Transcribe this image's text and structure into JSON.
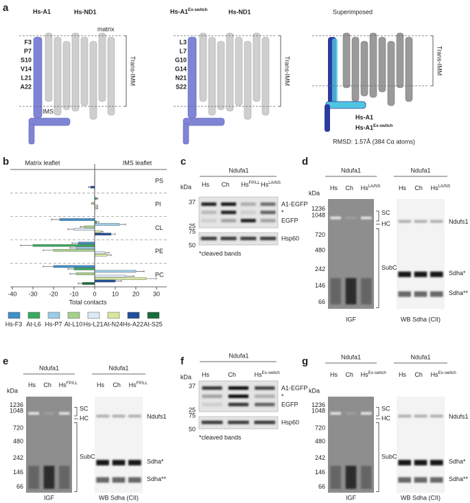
{
  "figure": {
    "panel_labels": [
      "a",
      "b",
      "c",
      "d",
      "e",
      "f",
      "g"
    ],
    "a": {
      "structures": [
        {
          "title": "Hs-A1",
          "partner": "Hs-ND1",
          "residues": [
            "F3",
            "P7",
            "S10",
            "V14",
            "L21",
            "A22"
          ]
        },
        {
          "title": "Hs-A1",
          "title_sup": "Ex-switch",
          "partner": "Hs-ND1",
          "residues": [
            "L3",
            "L7",
            "G10",
            "G14",
            "N21",
            "S22"
          ]
        },
        {
          "title": "Superimposed"
        }
      ],
      "matrix": "matrix",
      "ims": "IMS",
      "membrane": "Trans-IMM",
      "legend": [
        {
          "name": "Hs-A1"
        },
        {
          "name": "Hs-A1",
          "sup": "Ex-switch"
        }
      ],
      "rmsd": "RMSD: 1.57Å (384 Cα atoms)"
    },
    "c": {
      "group": "Ndufa1",
      "kda": "kDa",
      "lanes": [
        {
          "name": "Hs"
        },
        {
          "name": "Ch"
        },
        {
          "name": "Hs",
          "sup": "FP/LL"
        },
        {
          "name": "Hs",
          "sup": "LA/NS"
        }
      ],
      "markers_top": [
        "37",
        "25"
      ],
      "markers_bottom": [
        "75",
        "50"
      ],
      "bands": [
        "A1-EGFP",
        "*",
        "EGFP"
      ],
      "loading": "Hsp60",
      "note": "*cleaved bands"
    },
    "d": {
      "kda": "kDa",
      "markers": [
        "1236",
        "1048",
        "720",
        "480",
        "242",
        "146",
        "66"
      ],
      "left": {
        "group": "Ndufa1",
        "lanes": [
          {
            "name": "Hs"
          },
          {
            "name": "Ch"
          },
          {
            "name": "Hs",
            "sup": "LA/NS"
          }
        ],
        "complexes": [
          "SC",
          "HC",
          "SubC"
        ],
        "caption": "IGF"
      },
      "right": {
        "group": "Ndufa1",
        "lanes": [
          {
            "name": "Hs"
          },
          {
            "name": "Ch"
          },
          {
            "name": "Hs",
            "sup": "LA/NS"
          }
        ],
        "bands": [
          "Ndufs1",
          "Sdha*",
          "Sdha**"
        ],
        "caption": "WB Sdha (CII)"
      }
    },
    "e": {
      "kda": "kDa",
      "markers": [
        "1236",
        "1048",
        "720",
        "480",
        "242",
        "146",
        "66"
      ],
      "left": {
        "group": "Ndufa1",
        "lanes": [
          {
            "name": "Hs"
          },
          {
            "name": "Ch"
          },
          {
            "name": "Hs",
            "sup": "FP/LL"
          }
        ],
        "complexes": [
          "SC",
          "HC",
          "SubC"
        ],
        "caption": "IGF"
      },
      "right": {
        "group": "Ndufa1",
        "lanes": [
          {
            "name": "Hs"
          },
          {
            "name": "Ch"
          },
          {
            "name": "Hs",
            "sup": "FP/LL"
          }
        ],
        "bands": [
          "Ndufs1",
          "Sdha*",
          "Sdha**"
        ],
        "caption": "WB Sdha (CII)"
      }
    },
    "f": {
      "group": "Ndufa1",
      "kda": "kDa",
      "lanes": [
        {
          "name": "Hs"
        },
        {
          "name": "Ch"
        },
        {
          "name": "Hs",
          "sup": "Ex-switch"
        }
      ],
      "markers_top": [
        "37",
        "25"
      ],
      "markers_bottom": [
        "75",
        "50"
      ],
      "bands": [
        "A1-EGFP",
        "*",
        "EGFP"
      ],
      "loading": "Hsp60",
      "note": "*cleaved bands"
    },
    "g": {
      "kda": "kDa",
      "markers": [
        "1236",
        "1048",
        "720",
        "480",
        "242",
        "146",
        "66"
      ],
      "left": {
        "group": "Ndufa1",
        "lanes": [
          {
            "name": "Hs"
          },
          {
            "name": "Ch"
          },
          {
            "name": "Hs",
            "sup": "Ex-switch"
          }
        ],
        "complexes": [
          "SC",
          "HC",
          "SubC"
        ],
        "caption": "IGF"
      },
      "right": {
        "group": "Ndufa1",
        "lanes": [
          {
            "name": "Hs"
          },
          {
            "name": "Ch"
          },
          {
            "name": "Hs",
            "sup": "Ex-switch"
          }
        ],
        "bands": [
          "Ndufs1",
          "Sdha*",
          "Sdha**"
        ],
        "caption": "WB Sdha (CII)"
      }
    }
  },
  "chart_data": {
    "type": "bar",
    "orientation": "horizontal",
    "categories": [
      "PS",
      "PI",
      "CL",
      "PE",
      "PC"
    ],
    "annotations": [
      "Matrix leaflet",
      "IMS leaflet"
    ],
    "x_label": "Total contacts",
    "xlim": [
      -41,
      35
    ],
    "xticks": [
      -40,
      -30,
      -20,
      -10,
      0,
      10,
      20,
      30
    ],
    "series": [
      {
        "name": "Hs-F3",
        "color": "#3f8fc8",
        "values": [
          0,
          0,
          -17,
          -8,
          -20
        ],
        "errors": [
          0,
          0,
          4,
          3,
          5
        ]
      },
      {
        "name": "At-L6",
        "color": "#3aaa5c",
        "values": [
          0,
          1,
          1,
          -30,
          -10
        ],
        "errors": [
          0,
          0.5,
          1,
          6,
          3
        ]
      },
      {
        "name": "Hs-P7",
        "color": "#9ccbe8",
        "values": [
          0,
          0,
          12,
          -9,
          20
        ],
        "errors": [
          0,
          0,
          3,
          3,
          4
        ]
      },
      {
        "name": "At-L10",
        "color": "#a8d08d",
        "values": [
          0,
          -1,
          -5,
          -20,
          -9
        ],
        "errors": [
          0,
          0.5,
          2,
          5,
          3
        ]
      },
      {
        "name": "Hs-L21",
        "color": "#dceaf6",
        "values": [
          0,
          1,
          -10,
          5,
          15
        ],
        "errors": [
          0,
          0.5,
          3,
          2,
          4
        ]
      },
      {
        "name": "At-N24",
        "color": "#d8e7a0",
        "values": [
          0,
          1,
          3,
          6,
          25
        ],
        "errors": [
          0,
          0.5,
          1,
          2,
          5
        ]
      },
      {
        "name": "Hs-A22",
        "color": "#1f4e9a",
        "values": [
          -2,
          0,
          8,
          0,
          10
        ],
        "errors": [
          1,
          0,
          2,
          0,
          3
        ]
      },
      {
        "name": "At-S25",
        "color": "#1a6b3c",
        "values": [
          0,
          0,
          0,
          0,
          -6
        ],
        "errors": [
          0,
          0,
          0,
          0,
          2
        ]
      }
    ]
  }
}
